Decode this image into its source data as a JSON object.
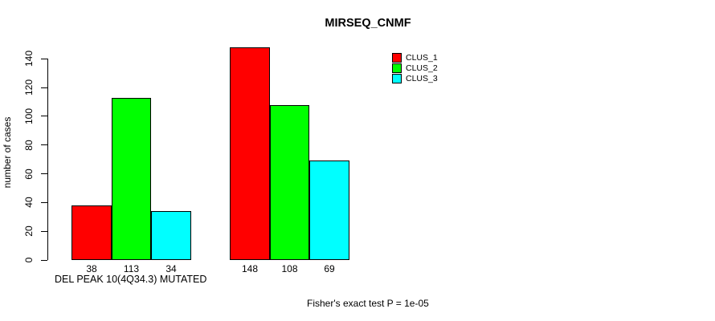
{
  "chart_data": {
    "type": "bar",
    "title": "MIRSEQ_CNMF",
    "ylabel": "number of cases",
    "xlabel": "DEL PEAK 10(4Q34.3) MUTATED",
    "footnote": "Fisher's exact test P = 1e-05",
    "series": [
      {
        "name": "CLUS_1",
        "color": "#ff0000",
        "values": [
          38,
          148
        ]
      },
      {
        "name": "CLUS_2",
        "color": "#00ff00",
        "values": [
          113,
          108
        ]
      },
      {
        "name": "CLUS_3",
        "color": "#00ffff",
        "values": [
          34,
          69
        ]
      }
    ],
    "groups": [
      {
        "bar_labels": [
          "38",
          "113",
          "34"
        ]
      },
      {
        "bar_labels": [
          "148",
          "108",
          "69"
        ]
      }
    ],
    "y_ticks": [
      0,
      20,
      40,
      60,
      80,
      100,
      120,
      140
    ],
    "ylim": [
      0,
      148
    ],
    "grid": false,
    "legend_position": "top-right",
    "axis_color": "#000000",
    "text_color": "#000000",
    "background_color": "#ffffff"
  }
}
